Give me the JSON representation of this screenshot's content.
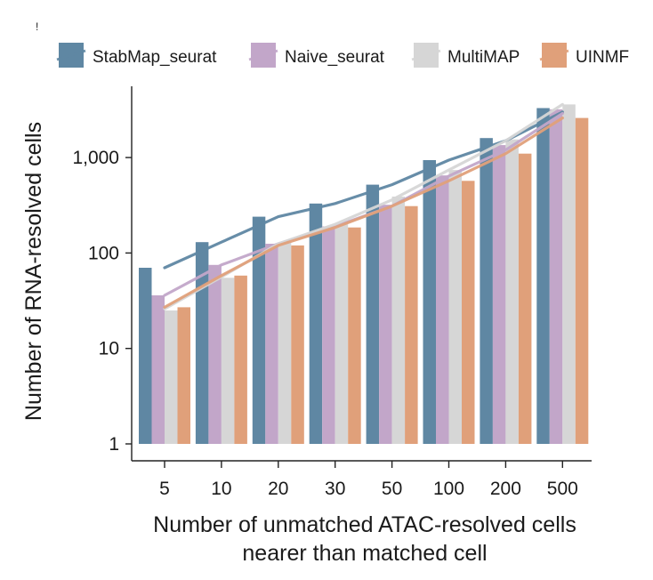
{
  "figure": {
    "corner_mark": "!"
  },
  "chart_data": {
    "type": "bar",
    "title": "",
    "xlabel_lines": [
      "Number of unmatched ATAC-resolved cells",
      "nearer than matched cell"
    ],
    "ylabel": "Number of RNA-resolved cells",
    "y_scale": "log",
    "ylim": [
      1,
      4000
    ],
    "y_ticks": [
      1,
      10,
      100,
      1000
    ],
    "y_tick_labels": [
      "1",
      "10",
      "100",
      "1,000"
    ],
    "categories": [
      "5",
      "10",
      "20",
      "30",
      "50",
      "100",
      "200",
      "500"
    ],
    "legend_position": "top",
    "grid": false,
    "series": [
      {
        "name": "StabMap_seurat",
        "color": "#5f87a3",
        "values": [
          70,
          130,
          240,
          330,
          520,
          940,
          1600,
          3300
        ],
        "line": [
          70,
          130,
          240,
          330,
          520,
          940,
          1500,
          3000
        ]
      },
      {
        "name": "Naive_seurat",
        "color": "#c2a6c9",
        "values": [
          36,
          75,
          125,
          190,
          320,
          650,
          1350,
          3200
        ],
        "line": [
          36,
          75,
          125,
          190,
          310,
          640,
          1200,
          2900
        ]
      },
      {
        "name": "MultiMAP",
        "color": "#d6d6d6",
        "values": [
          25,
          55,
          130,
          200,
          390,
          740,
          1550,
          3600
        ],
        "line": [
          26,
          56,
          125,
          200,
          360,
          740,
          1500,
          3600
        ]
      },
      {
        "name": "UINMF",
        "color": "#e0a07a",
        "values": [
          27,
          58,
          120,
          185,
          310,
          570,
          1100,
          2600
        ],
        "line": [
          27,
          58,
          120,
          185,
          310,
          570,
          1100,
          2600
        ]
      }
    ]
  }
}
